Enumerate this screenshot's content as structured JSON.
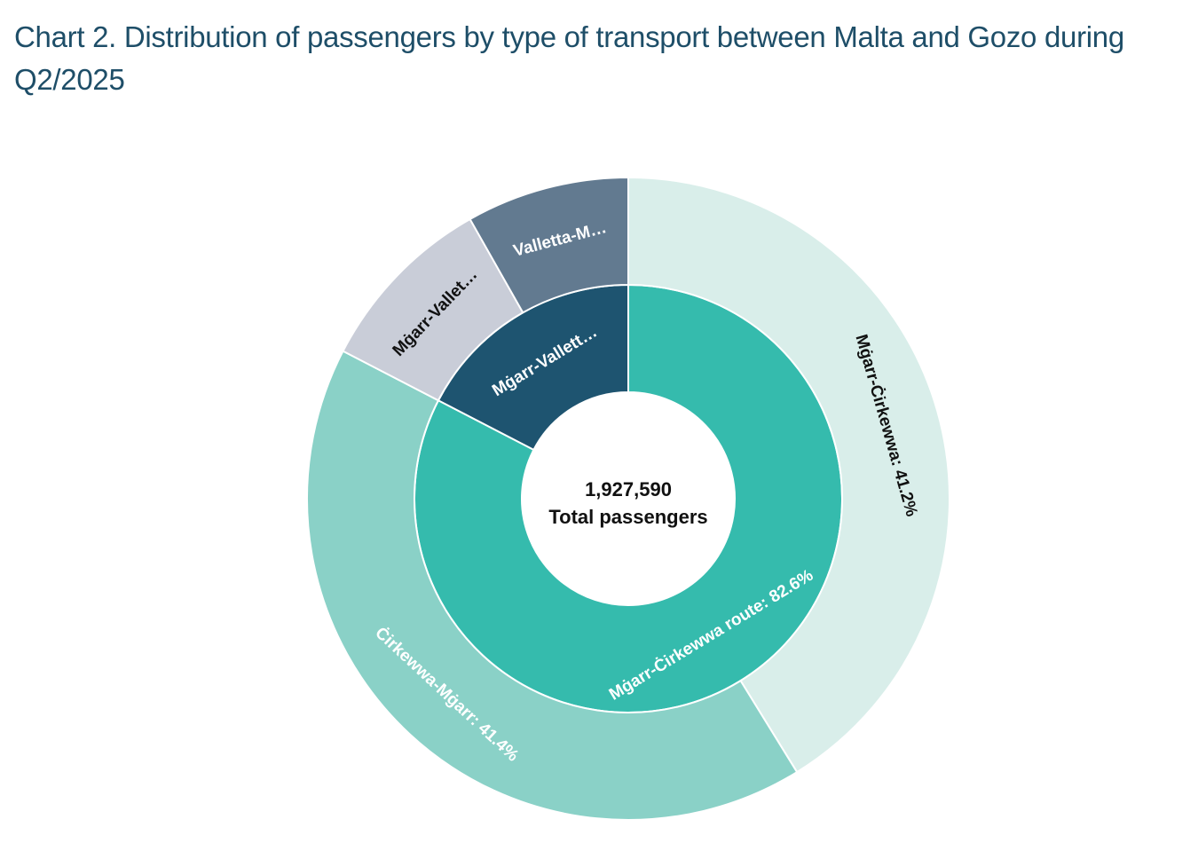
{
  "chart_data": {
    "type": "sunburst",
    "title": "Chart 2. Distribution of passengers by type of transport between Malta and Gozo during Q2/2025",
    "center_value": "1,927,590",
    "center_label": "Total passengers",
    "inner_ring": [
      {
        "label": "Mġarr-Ċirkewwa route: 82.6%",
        "value": 82.6,
        "color": "#35bbad",
        "text_color": "#ffffff"
      },
      {
        "label": "Mġarr-Vallett…",
        "value": 17.4,
        "color": "#1e5470",
        "text_color": "#ffffff"
      }
    ],
    "outer_ring": [
      {
        "label": "Mġarr-Ċirkewwa: 41.2%",
        "value": 41.2,
        "color": "#d9eeea",
        "text_color": "#111111"
      },
      {
        "label": "Ċirkewwa-Mġarr: 41.4%",
        "value": 41.4,
        "color": "#8ad1c7",
        "text_color": "#ffffff"
      },
      {
        "label": "Mġarr-Vallet…",
        "value": 9.2,
        "color": "#c9cdd8",
        "text_color": "#111111"
      },
      {
        "label": "Valletta-M…",
        "value": 8.2,
        "color": "#627a90",
        "text_color": "#ffffff"
      }
    ]
  }
}
